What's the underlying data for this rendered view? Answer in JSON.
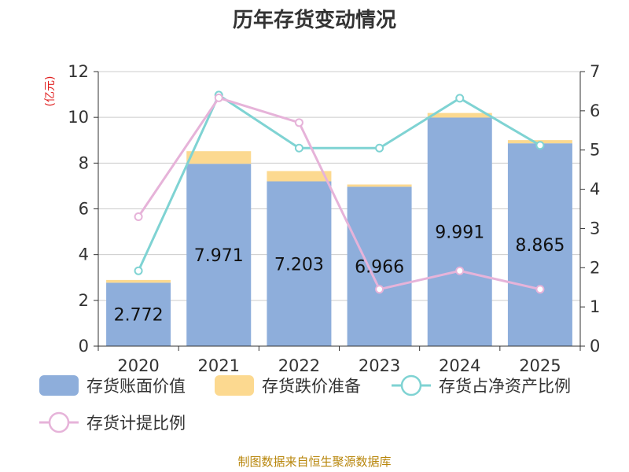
{
  "chart_data": {
    "type": "bar",
    "title": "历年存货变动情况",
    "categories": [
      "2020",
      "2021",
      "2022",
      "2023",
      "2024",
      "2025"
    ],
    "left_axis": {
      "unit_label": "(亿元)",
      "range": [
        0,
        12
      ],
      "ticks": [
        "0",
        "2",
        "4",
        "6",
        "8",
        "10",
        "12"
      ]
    },
    "right_axis": {
      "range": [
        0,
        7
      ],
      "ticks": [
        "0",
        "1",
        "2",
        "3",
        "4",
        "5",
        "6",
        "7"
      ]
    },
    "stacked_bars": [
      {
        "name": "存货账面价值",
        "color": "#8eaedb",
        "values": [
          2.772,
          7.971,
          7.203,
          6.966,
          9.991,
          8.865
        ],
        "labels": [
          "2.772",
          "7.971",
          "7.203",
          "6.966",
          "9.991",
          "8.865"
        ]
      },
      {
        "name": "存货跌价准备",
        "color": "#fcd990",
        "values": [
          0.12,
          0.55,
          0.45,
          0.1,
          0.2,
          0.14
        ]
      }
    ],
    "lines": [
      {
        "name": "存货占净资产比例",
        "color": "#7fd3d3",
        "axis": "right",
        "values": [
          1.92,
          6.4,
          5.05,
          5.05,
          6.32,
          5.12
        ]
      },
      {
        "name": "存货计提比例",
        "color": "#e6b3d9",
        "axis": "right",
        "values": [
          3.3,
          6.33,
          5.7,
          1.45,
          1.92,
          1.45
        ]
      }
    ],
    "grid": true,
    "legend_position": "bottom"
  },
  "source": "制图数据来自恒生聚源数据库"
}
